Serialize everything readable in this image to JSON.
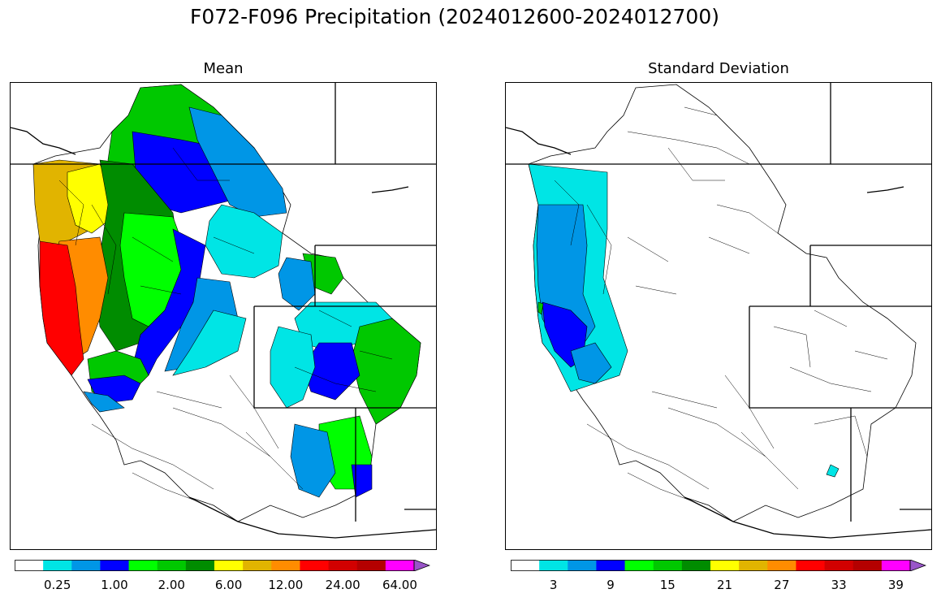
{
  "title": "F072-F096 Precipitation (2024012600-2024012700)",
  "panels": [
    {
      "name": "mean",
      "title": "Mean",
      "colorbar": {
        "ticks": [
          "0.25",
          "1.00",
          "2.00",
          "6.00",
          "12.00",
          "24.00",
          "64.00"
        ],
        "tick_bins": [
          1,
          3,
          5,
          7,
          9,
          11,
          13
        ]
      }
    },
    {
      "name": "std",
      "title": "Standard Deviation",
      "colorbar": {
        "ticks": [
          "3",
          "9",
          "15",
          "21",
          "27",
          "33",
          "39"
        ],
        "tick_bins": [
          1,
          3,
          5,
          7,
          9,
          11,
          13
        ]
      }
    }
  ],
  "colorbar_colors": [
    "#ffffff",
    "#00e5e5",
    "#0096e6",
    "#0000ff",
    "#00ff00",
    "#00c800",
    "#008c00",
    "#ffff00",
    "#e1b400",
    "#ff8c00",
    "#ff0000",
    "#d20000",
    "#b40000",
    "#ff00ff",
    "#9955c9"
  ],
  "colors": {
    "white": "#ffffff",
    "cyan": "#00e5e5",
    "lightblue": "#0096e6",
    "blue": "#0000ff",
    "lime": "#00ff00",
    "green": "#00c800",
    "darkgreen": "#008c00",
    "yellow": "#ffff00",
    "gold": "#e1b400",
    "orange": "#ff8c00",
    "red": "#ff0000",
    "darkred": "#d20000"
  }
}
